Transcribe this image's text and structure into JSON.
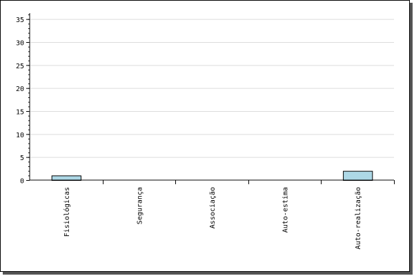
{
  "chart_data": {
    "type": "bar",
    "title": "",
    "xlabel": "",
    "ylabel": "",
    "categories": [
      "Fisiológicas",
      "Segurança",
      "Associação",
      "Auto-estima",
      "Auto-realização"
    ],
    "values": [
      1,
      0,
      0,
      0,
      2
    ],
    "ylim": [
      0,
      36
    ],
    "yticks": [
      "0",
      "5",
      "10",
      "15",
      "20",
      "25",
      "30",
      "35"
    ],
    "grid": true,
    "legend": "none",
    "colors": {
      "bar_fill": "#add8e6",
      "bar_stroke": "#000000",
      "grid": "#dcdcdc",
      "axis": "#000000"
    }
  }
}
